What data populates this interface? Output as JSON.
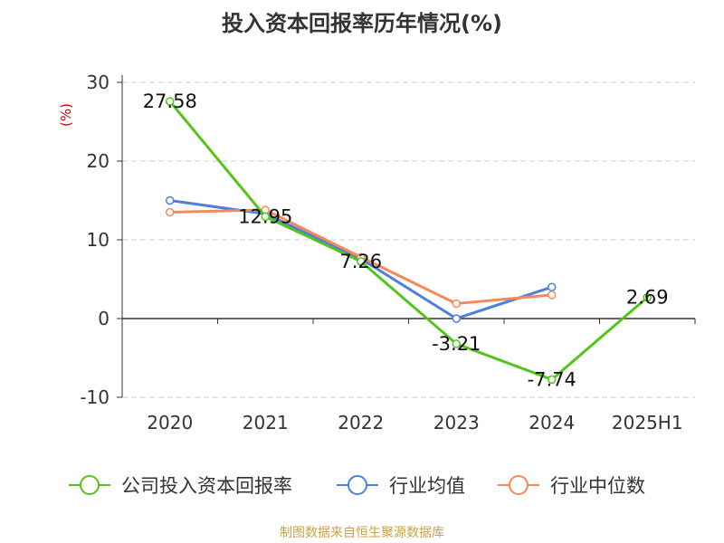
{
  "chart_data": {
    "type": "line",
    "title": "投入资本回报率历年情况(%)",
    "ylabel": "(%)",
    "xlabel": "",
    "categories": [
      "2020",
      "2021",
      "2022",
      "2023",
      "2024",
      "2025H1"
    ],
    "ylim": [
      -10,
      30
    ],
    "yticks": [
      30,
      20,
      10,
      0,
      -10
    ],
    "grid": true,
    "legend_position": "bottom",
    "series": [
      {
        "name": "公司投入资本回报率",
        "color": "#52c41a",
        "values": [
          27.58,
          12.95,
          7.26,
          -3.21,
          -7.74,
          2.69
        ],
        "labels": [
          "27.58",
          "12.95",
          "7.26",
          "-3.21",
          "-7.74",
          "2.69"
        ]
      },
      {
        "name": "行业均值",
        "color": "#4f7fdc",
        "values": [
          15.0,
          13.3,
          7.6,
          0.0,
          4.0,
          null
        ],
        "labels": []
      },
      {
        "name": "行业中位数",
        "color": "#f5895a",
        "values": [
          13.5,
          13.8,
          7.8,
          1.9,
          3.0,
          null
        ],
        "labels": []
      }
    ]
  },
  "footer": "制图数据来自恒生聚源数据库"
}
